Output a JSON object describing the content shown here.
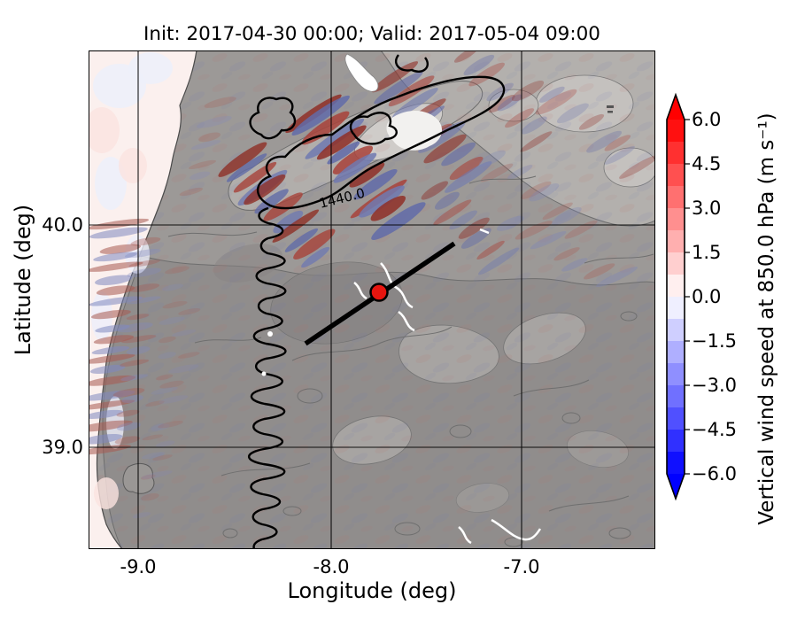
{
  "figure": {
    "title": "Init: 2017-04-30 00:00; Valid: 2017-05-04 09:00",
    "xlabel": "Longitude (deg)",
    "ylabel": "Latitude (deg)",
    "xticks": [
      "-9.0",
      "-8.0",
      "-7.0"
    ],
    "yticks": [
      "40.0",
      "39.0"
    ],
    "contour_label": "1440.0",
    "colorbar": {
      "label": "Vertical wind speed at 850.0 hPa (m s⁻¹)",
      "ticks": [
        "6.0",
        "4.5",
        "3.0",
        "1.5",
        "0.0",
        "−1.5",
        "−3.0",
        "−4.5",
        "−6.0"
      ]
    }
  },
  "chart_data": {
    "type": "heatmap",
    "title": "Init: 2017-04-30 00:00; Valid: 2017-05-04 09:00",
    "xlabel": "Longitude (deg)",
    "ylabel": "Latitude (deg)",
    "xlim": [
      -9.26,
      -6.3
    ],
    "ylim": [
      38.54,
      40.78
    ],
    "xticks": [
      -9.0,
      -8.0,
      -7.0
    ],
    "yticks": [
      40.0,
      39.0
    ],
    "grid": true,
    "colorbar": {
      "label": "Vertical wind speed at 850.0 hPa (m s⁻¹)",
      "ticks": [
        6.0,
        4.5,
        3.0,
        1.5,
        0.0,
        -1.5,
        -3.0,
        -4.5,
        -6.0
      ],
      "range": [
        -6.0,
        6.0
      ],
      "step": 0.75,
      "extend": "both",
      "colormap": "blue-white-red",
      "under_color": "#0000ff",
      "over_color": "#ff0000"
    },
    "terrain_contour_label_m": 1440.0,
    "marker": {
      "type": "point",
      "lon": -7.74,
      "lat": 39.7,
      "color": "#e8150f"
    },
    "cross_section_line": {
      "from_lonlat": [
        -8.13,
        39.47
      ],
      "to_lonlat": [
        -7.35,
        39.92
      ]
    },
    "notes": "Gray shaded terrain map of central Portugal with mountain-wave bands of alternating positive (red) and negative (blue) vertical wind speed along the Serra da Estrela ridge and the Atlantic coastline; near-zero values (pale) over the ocean."
  }
}
